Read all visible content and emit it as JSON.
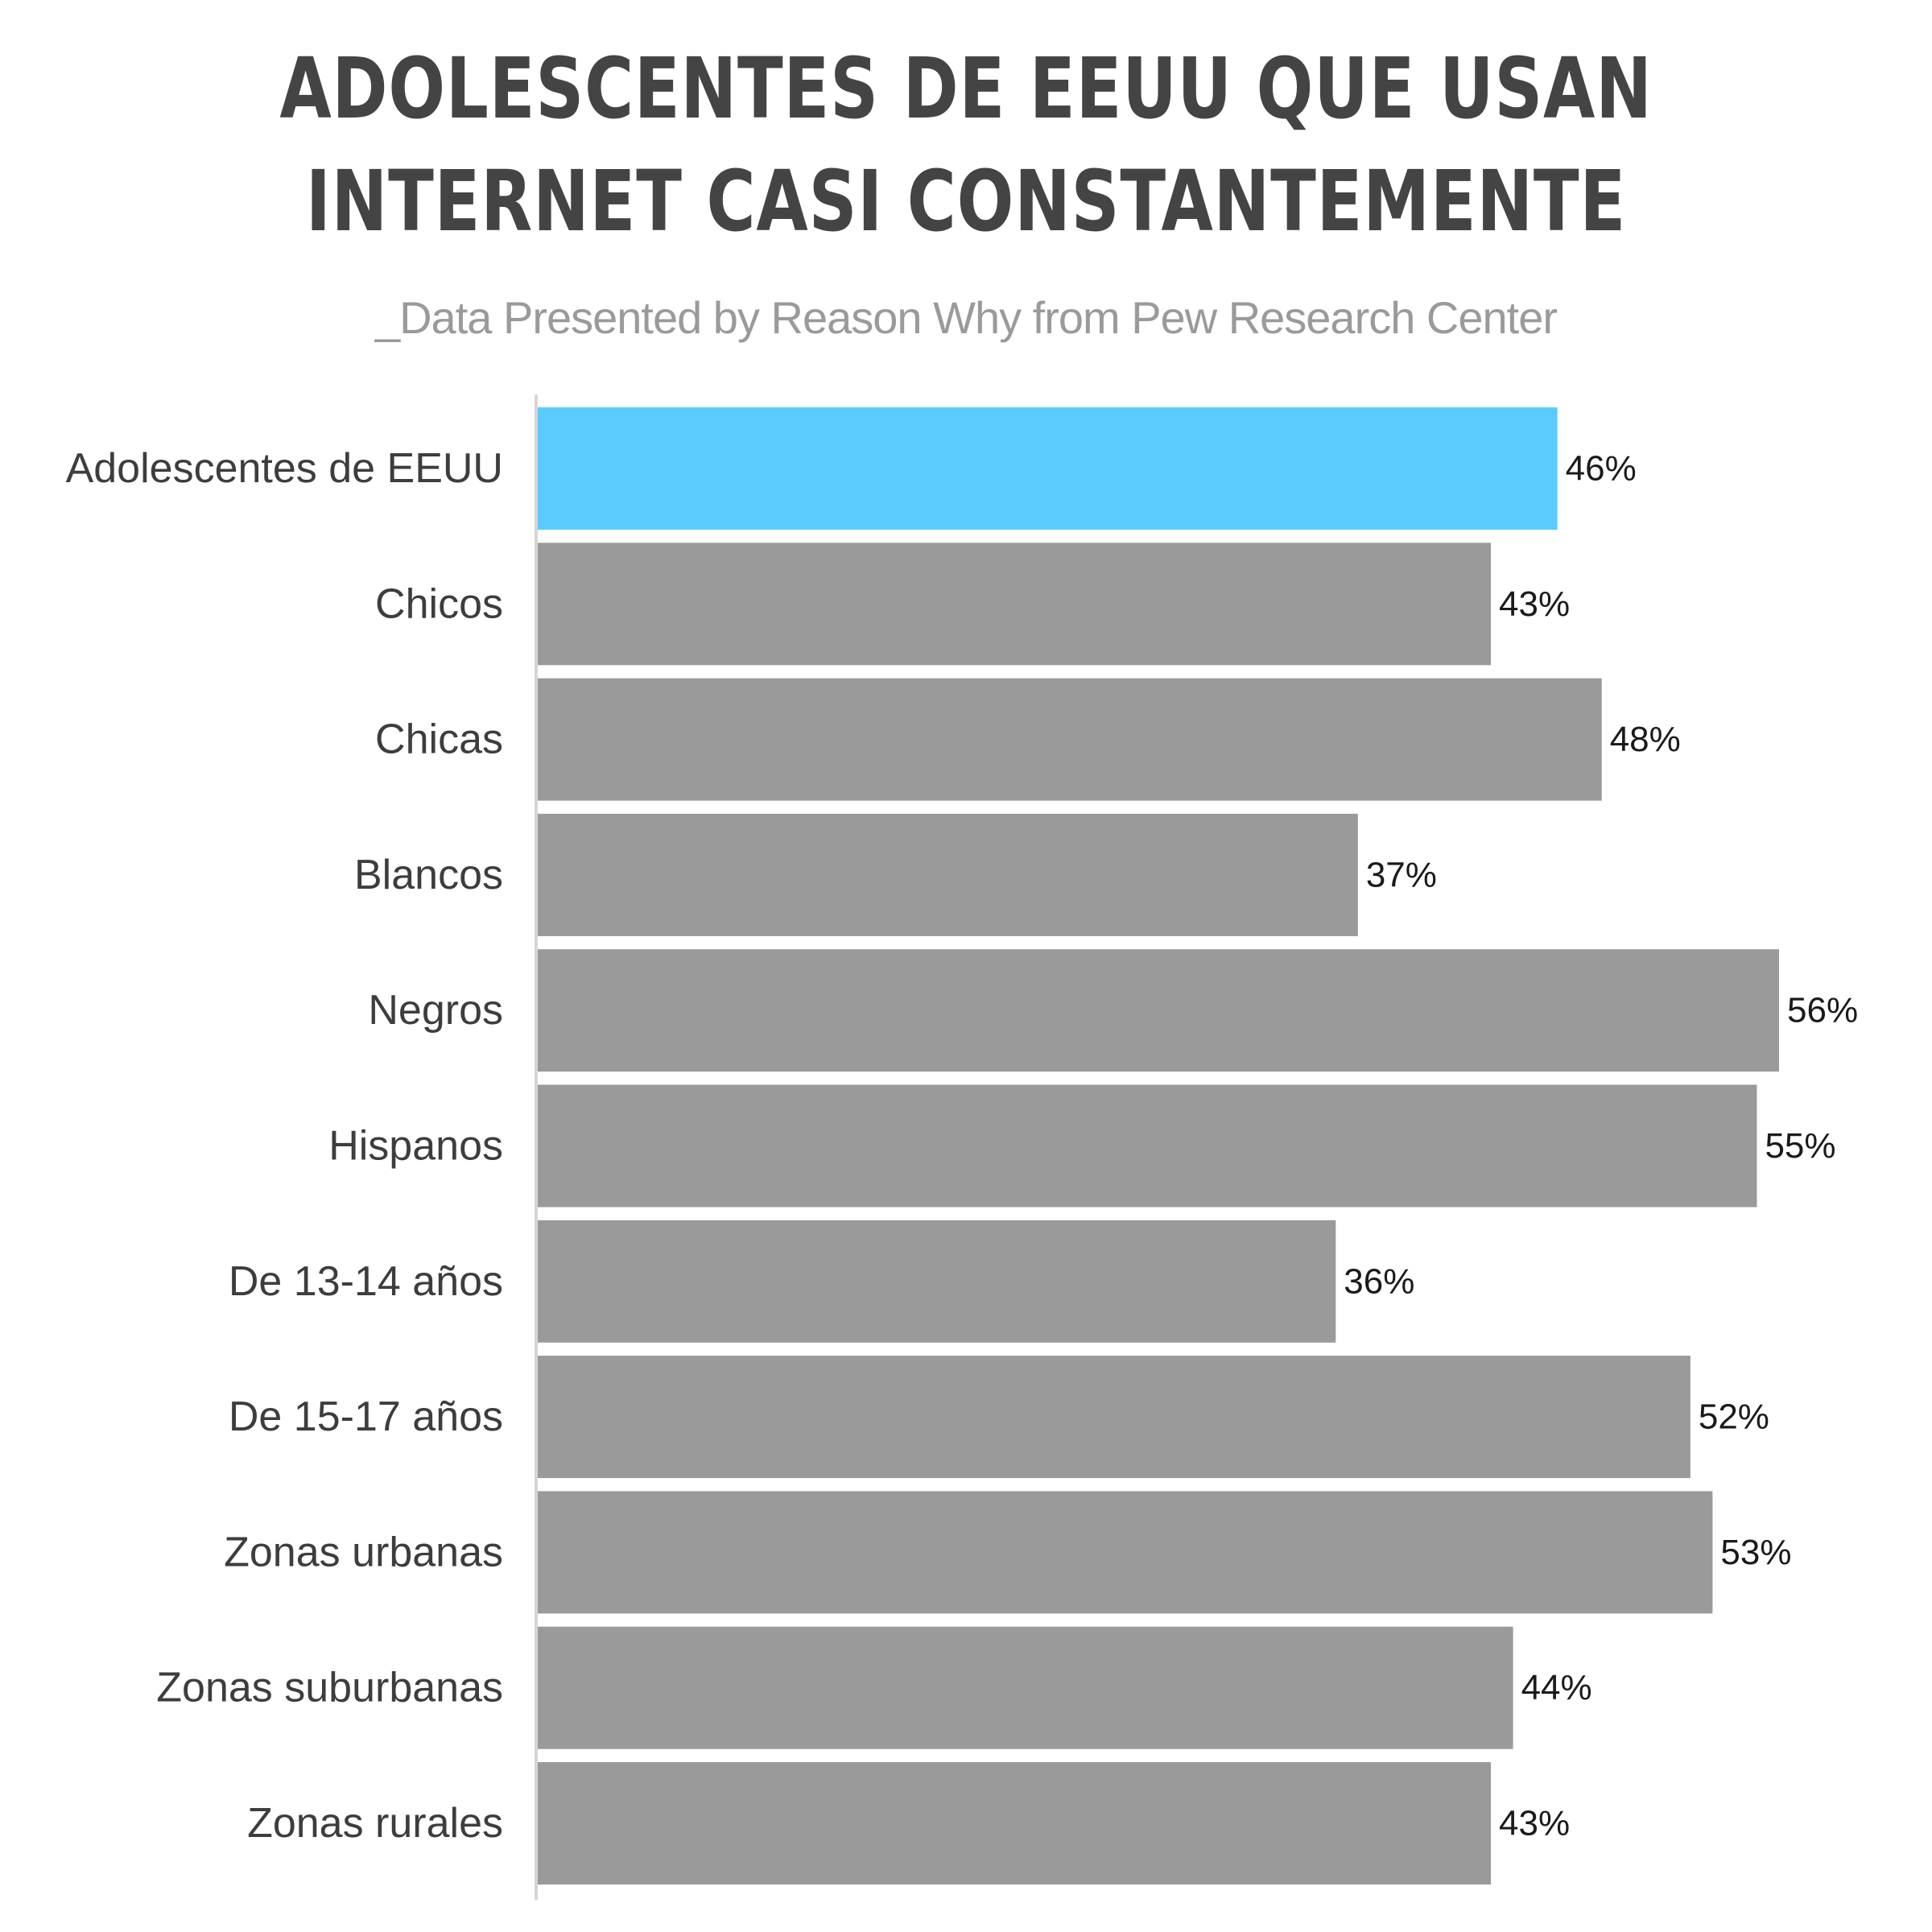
{
  "chart_data": {
    "type": "bar",
    "orientation": "horizontal",
    "title": "ADOLESCENTES DE EEUU QUE USAN INTERNET CASI CONSTANTEMENTE",
    "subtitle": "_Data Presented by Reason Why from Pew Research Center",
    "categories": [
      "Adolescentes de EEUU",
      "Chicos",
      "Chicas",
      "Blancos",
      "Negros",
      "Hispanos",
      "De 13-14 años",
      "De 15-17 años",
      "Zonas urbanas",
      "Zonas suburbanas",
      "Zonas rurales"
    ],
    "values": [
      46,
      43,
      48,
      37,
      56,
      55,
      36,
      52,
      53,
      44,
      43
    ],
    "value_labels": [
      "46%",
      "43%",
      "48%",
      "37%",
      "56%",
      "55%",
      "36%",
      "52%",
      "53%",
      "44%",
      "43%"
    ],
    "unit": "%",
    "xlim": [
      0,
      56
    ],
    "grid": false,
    "legend": "none",
    "highlight_index": 0,
    "colors": {
      "highlight": "#5acbfc",
      "bar": "#9a9a9a",
      "axis": "#d6d6d6",
      "title": "#444444",
      "subtitle": "#9a9a9a",
      "category_text": "#3d3d3d",
      "value_text": "#1a1a1a"
    }
  }
}
